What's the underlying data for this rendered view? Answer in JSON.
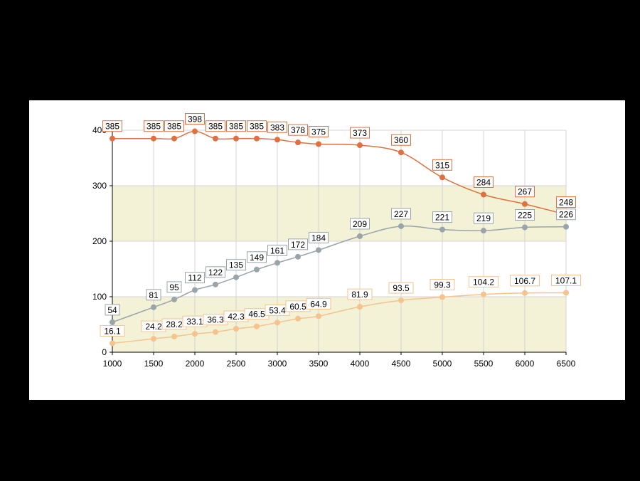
{
  "chart_data": {
    "type": "line",
    "title": "",
    "xlabel": "",
    "ylabel": "",
    "x": [
      1000,
      1500,
      1750,
      2000,
      2250,
      2500,
      2750,
      3000,
      3250,
      3500,
      4000,
      4500,
      5000,
      5500,
      6000,
      6500
    ],
    "xlim": [
      1000,
      6500
    ],
    "ylim": [
      0,
      400
    ],
    "xticks": [
      "1000",
      "1500",
      "2000",
      "2500",
      "3000",
      "3500",
      "4000",
      "4500",
      "5000",
      "5500",
      "6000",
      "6500"
    ],
    "yticks": [
      "0",
      "100",
      "200",
      "300",
      "400"
    ],
    "grid": true,
    "bands": [
      [
        0,
        100
      ],
      [
        200,
        300
      ]
    ],
    "band_color": "#f3f1d6",
    "series": [
      {
        "color": "#e0703f",
        "values": [
          385,
          385,
          385,
          398,
          385,
          385,
          385,
          383,
          378,
          375,
          373,
          360,
          315,
          284,
          267,
          248
        ],
        "labels": [
          "385",
          "385",
          "385",
          "398",
          "385",
          "385",
          "385",
          "383",
          "378",
          "375",
          "373",
          "360",
          "315",
          "284",
          "267",
          "248"
        ]
      },
      {
        "color": "#9aa4ab",
        "values": [
          54,
          81,
          95,
          112,
          122,
          135,
          149,
          161,
          172,
          184,
          209,
          227,
          221,
          219,
          225,
          226
        ],
        "labels": [
          "54",
          "81",
          "95",
          "112",
          "122",
          "135",
          "149",
          "161",
          "172",
          "184",
          "209",
          "227",
          "221",
          "219",
          "225",
          "226"
        ]
      },
      {
        "color": "#f6c28e",
        "values": [
          16.1,
          24.2,
          28.2,
          33.1,
          36.3,
          42.3,
          46.5,
          53.4,
          60.5,
          64.9,
          81.9,
          93.5,
          99.3,
          104.2,
          106.7,
          107.1
        ],
        "labels": [
          "16.1",
          "24.2",
          "28.2",
          "33.1",
          "36.3",
          "42.3",
          "46.5",
          "53.4",
          "60.5",
          "64.9",
          "81.9",
          "93.5",
          "99.3",
          "104.2",
          "106.7",
          "107.1"
        ]
      }
    ]
  }
}
